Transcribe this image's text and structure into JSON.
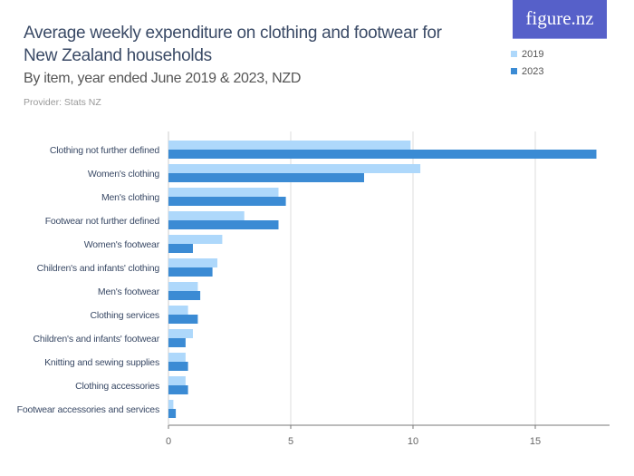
{
  "header": {
    "title": "Average weekly expenditure on clothing and footwear for New Zealand households",
    "subtitle": "By item, year ended June 2019 & 2023, NZD",
    "provider": "Provider: Stats NZ",
    "logo": "figure.nz"
  },
  "chart_data": {
    "type": "bar",
    "orientation": "horizontal",
    "categories": [
      "Clothing not further defined",
      "Women's clothing",
      "Men's clothing",
      "Footwear not further defined",
      "Women's footwear",
      "Children's and infants' clothing",
      "Men's footwear",
      "Clothing services",
      "Children's and infants' footwear",
      "Knitting and sewing supplies",
      "Clothing accessories",
      "Footwear accessories and services"
    ],
    "series": [
      {
        "name": "2019",
        "color": "#aed8fb",
        "values": [
          9.9,
          10.3,
          4.5,
          3.1,
          2.2,
          2.0,
          1.2,
          0.8,
          1.0,
          0.7,
          0.7,
          0.2
        ]
      },
      {
        "name": "2023",
        "color": "#3b8bd4",
        "values": [
          17.5,
          8.0,
          4.8,
          4.5,
          1.0,
          1.8,
          1.3,
          1.2,
          0.7,
          0.8,
          0.8,
          0.3
        ]
      }
    ],
    "xlim": [
      0,
      18
    ],
    "xticks": [
      "0",
      "5",
      "10",
      "15"
    ],
    "grid": true,
    "legend": "top-right"
  }
}
